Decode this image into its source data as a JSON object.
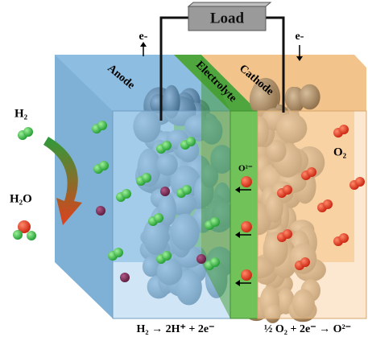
{
  "load": "Load",
  "electron_left": "e-",
  "electron_right": "e-",
  "layers": {
    "anode": "Anode",
    "electrolyte": "Electrolyte",
    "cathode": "Cathode"
  },
  "species": {
    "hydrogen": "H₂",
    "water": "H₂O",
    "oxide_ion": "O²⁻",
    "oxygen": "O₂"
  },
  "equations": {
    "anode": "H₂ → 2H⁺ + 2e⁻",
    "cathode": "½ O₂ + 2e⁻ → O²⁻"
  }
}
